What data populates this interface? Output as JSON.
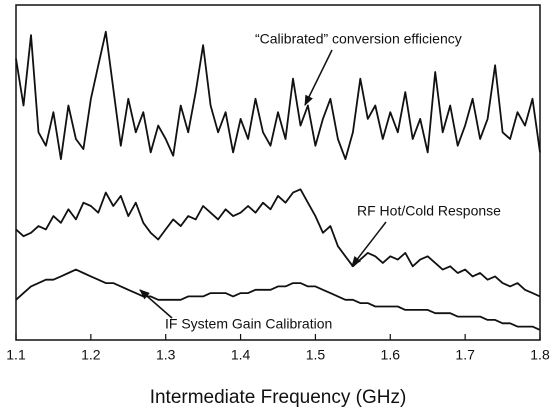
{
  "chart_data": {
    "type": "line",
    "x_label": "Intermediate Frequency (GHz)",
    "xlim": [
      1.1,
      1.8
    ],
    "xticks": [
      1.1,
      1.2,
      1.3,
      1.4,
      1.5,
      1.6,
      1.7,
      1.8
    ],
    "ylim": [
      0,
      100
    ],
    "x": [
      1.1,
      1.11,
      1.12,
      1.13,
      1.14,
      1.15,
      1.16,
      1.17,
      1.18,
      1.19,
      1.2,
      1.21,
      1.22,
      1.23,
      1.24,
      1.25,
      1.26,
      1.27,
      1.28,
      1.29,
      1.3,
      1.31,
      1.32,
      1.33,
      1.34,
      1.35,
      1.36,
      1.37,
      1.38,
      1.39,
      1.4,
      1.41,
      1.42,
      1.43,
      1.44,
      1.45,
      1.46,
      1.47,
      1.48,
      1.49,
      1.5,
      1.51,
      1.52,
      1.53,
      1.54,
      1.55,
      1.56,
      1.57,
      1.58,
      1.59,
      1.6,
      1.61,
      1.62,
      1.63,
      1.64,
      1.65,
      1.66,
      1.67,
      1.68,
      1.69,
      1.7,
      1.71,
      1.72,
      1.73,
      1.74,
      1.75,
      1.76,
      1.77,
      1.78,
      1.79,
      1.8
    ],
    "series": [
      {
        "name": "“Calibrated” conversion efficiency",
        "color": "#111111",
        "values": [
          84,
          70,
          91,
          62,
          58,
          68,
          54,
          70,
          60,
          57,
          72,
          82,
          92,
          75,
          58,
          72,
          62,
          68,
          56,
          64,
          60,
          55,
          70,
          62,
          74,
          88,
          70,
          62,
          68,
          56,
          66,
          60,
          72,
          62,
          58,
          68,
          60,
          78,
          64,
          70,
          58,
          66,
          72,
          60,
          54,
          62,
          78,
          66,
          70,
          60,
          68,
          62,
          74,
          60,
          66,
          56,
          80,
          62,
          70,
          58,
          64,
          72,
          60,
          66,
          82,
          62,
          60,
          68,
          64,
          72,
          56
        ]
      },
      {
        "name": "RF Hot/Cold Response",
        "color": "#111111",
        "values": [
          33,
          31,
          32,
          34,
          33,
          37,
          35,
          39,
          36,
          41,
          40,
          38,
          44,
          40,
          43,
          37,
          41,
          35,
          32,
          30,
          33,
          36,
          34,
          37,
          36,
          40,
          38,
          36,
          39,
          37,
          38,
          40,
          38,
          41,
          39,
          43,
          41,
          44,
          45,
          41,
          37,
          32,
          34,
          28,
          25,
          22,
          24,
          26,
          25,
          23,
          25,
          24,
          26,
          22,
          24,
          25,
          23,
          21,
          22,
          20,
          21,
          19,
          20,
          18,
          19,
          17,
          16,
          17,
          15,
          14,
          13
        ]
      },
      {
        "name": "IF System Gain Calibration",
        "color": "#111111",
        "values": [
          12,
          14,
          16,
          17,
          18,
          18,
          19,
          20,
          21,
          20,
          19,
          18,
          17,
          17,
          16,
          15,
          14,
          13,
          13,
          12,
          12,
          12,
          12,
          13,
          13,
          13,
          14,
          14,
          14,
          13,
          14,
          14,
          15,
          15,
          15,
          16,
          16,
          17,
          17,
          16,
          16,
          15,
          14,
          13,
          12,
          12,
          11,
          11,
          10,
          10,
          10,
          10,
          9,
          9,
          9,
          9,
          8,
          8,
          8,
          7,
          7,
          7,
          7,
          6,
          6,
          5,
          5,
          4,
          4,
          4,
          3
        ]
      }
    ]
  }
}
